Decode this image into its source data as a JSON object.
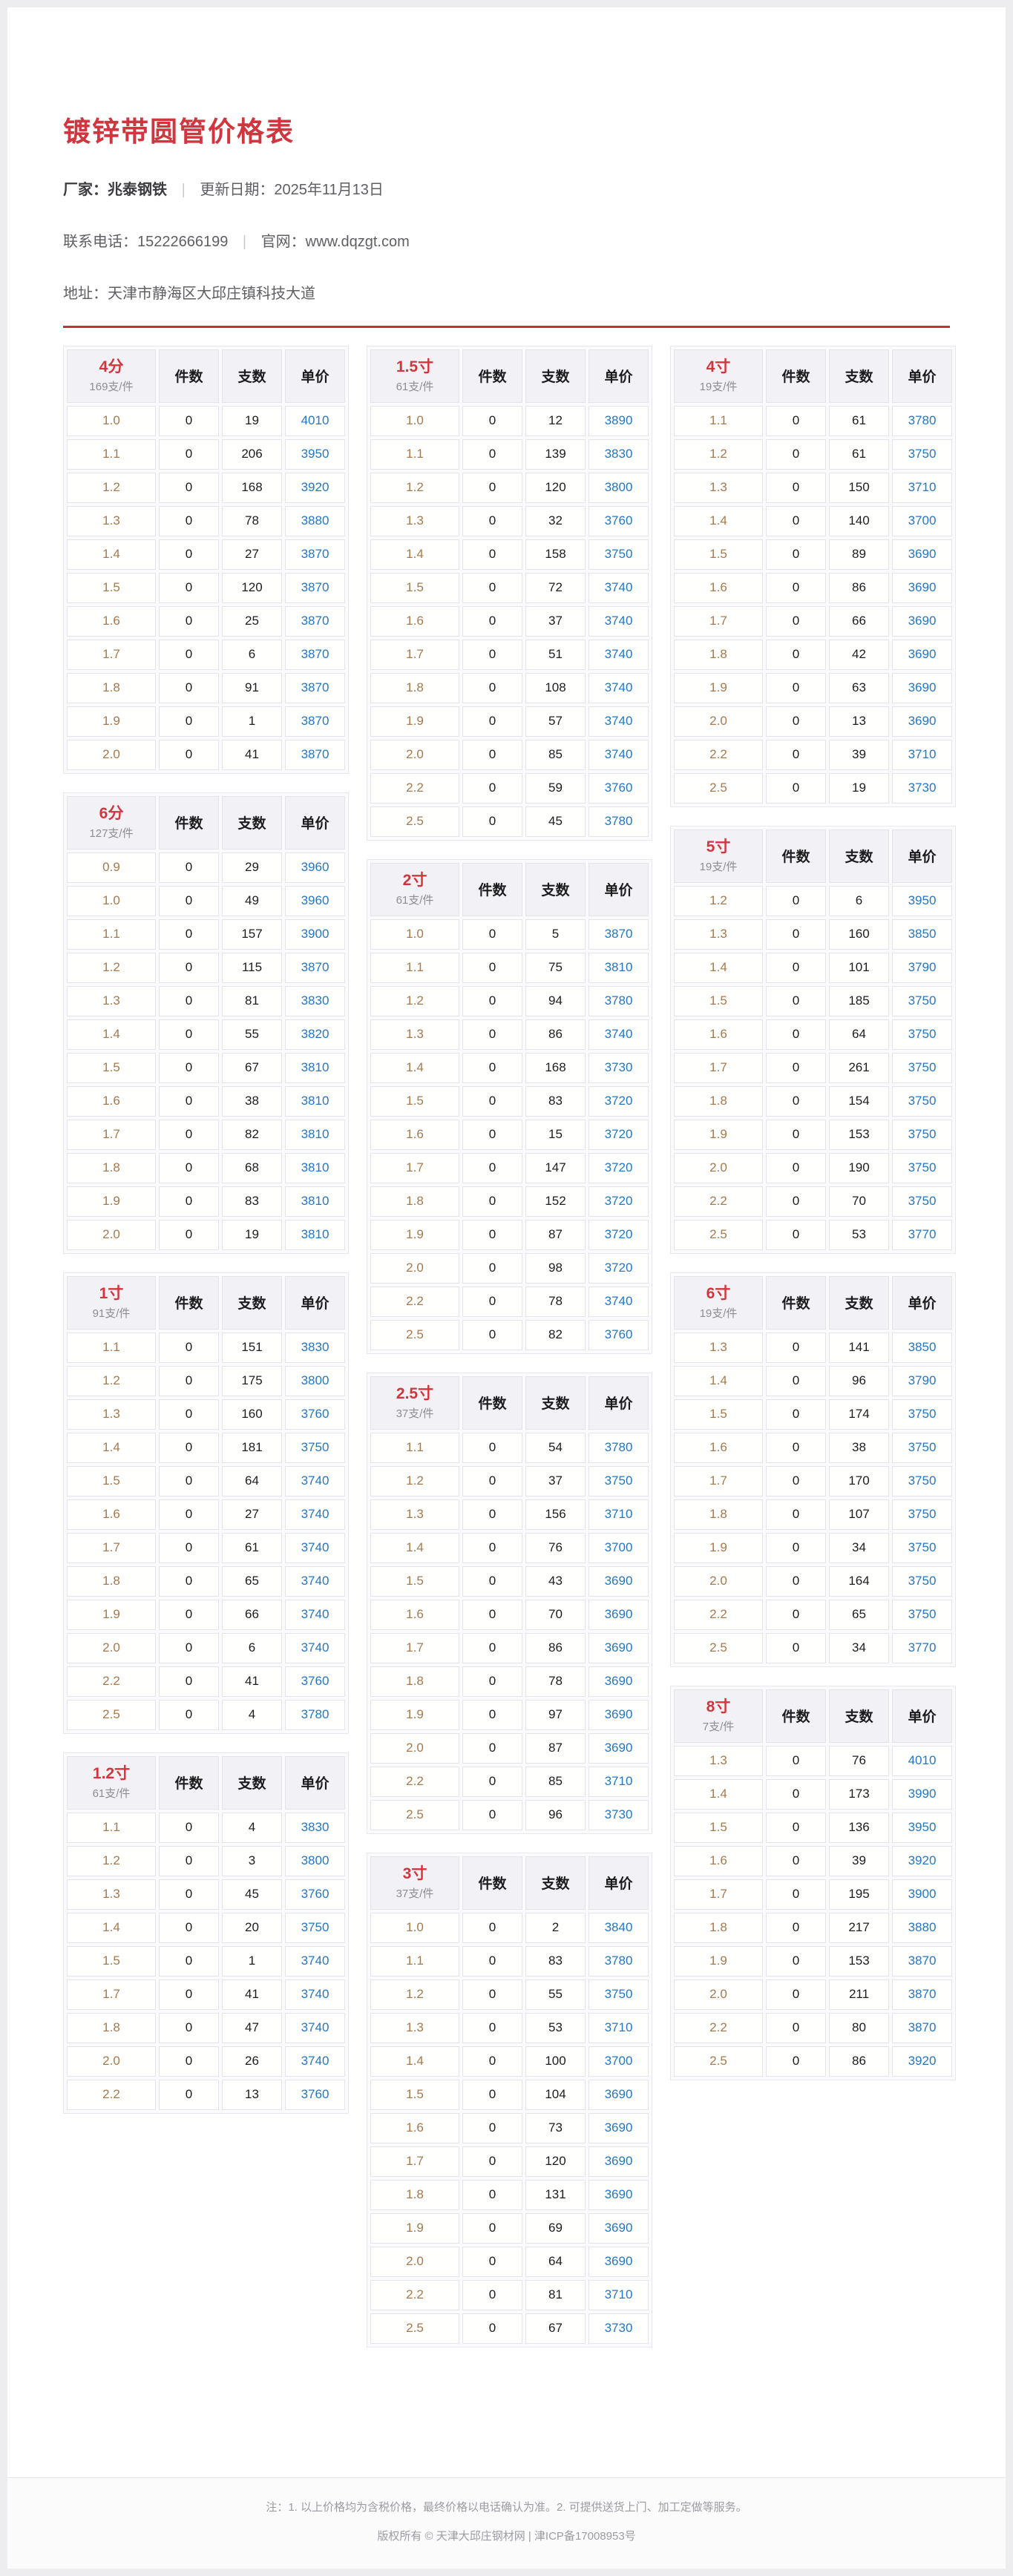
{
  "header": {
    "title": "镀锌带圆管价格表",
    "vendor": "厂家：兆泰钢铁",
    "updated": "更新日期：2025年11月13日",
    "phone": "联系电话：15222666199",
    "website": "官网：www.dqzgt.com",
    "address": "地址：天津市静海区大邱庄镇科技大道",
    "divider": "|"
  },
  "colors": {
    "accent_red": "#d2353e",
    "rule_red": "#c5303c",
    "price_blue": "#2377c8",
    "spec_brown": "#a6794f"
  },
  "table_headers": [
    "件数",
    "支数",
    "单价"
  ],
  "table_groups": [
    [
      {
        "size": "4分",
        "per": "169支/件",
        "rows": [
          [
            "1.0",
            "0",
            "19",
            "4010"
          ],
          [
            "1.1",
            "0",
            "206",
            "3950"
          ],
          [
            "1.2",
            "0",
            "168",
            "3920"
          ],
          [
            "1.3",
            "0",
            "78",
            "3880"
          ],
          [
            "1.4",
            "0",
            "27",
            "3870"
          ],
          [
            "1.5",
            "0",
            "120",
            "3870"
          ],
          [
            "1.6",
            "0",
            "25",
            "3870"
          ],
          [
            "1.7",
            "0",
            "6",
            "3870"
          ],
          [
            "1.8",
            "0",
            "91",
            "3870"
          ],
          [
            "1.9",
            "0",
            "1",
            "3870"
          ],
          [
            "2.0",
            "0",
            "41",
            "3870"
          ]
        ]
      },
      {
        "size": "6分",
        "per": "127支/件",
        "rows": [
          [
            "0.9",
            "0",
            "29",
            "3960"
          ],
          [
            "1.0",
            "0",
            "49",
            "3960"
          ],
          [
            "1.1",
            "0",
            "157",
            "3900"
          ],
          [
            "1.2",
            "0",
            "115",
            "3870"
          ],
          [
            "1.3",
            "0",
            "81",
            "3830"
          ],
          [
            "1.4",
            "0",
            "55",
            "3820"
          ],
          [
            "1.5",
            "0",
            "67",
            "3810"
          ],
          [
            "1.6",
            "0",
            "38",
            "3810"
          ],
          [
            "1.7",
            "0",
            "82",
            "3810"
          ],
          [
            "1.8",
            "0",
            "68",
            "3810"
          ],
          [
            "1.9",
            "0",
            "83",
            "3810"
          ],
          [
            "2.0",
            "0",
            "19",
            "3810"
          ]
        ]
      },
      {
        "size": "1寸",
        "per": "91支/件",
        "rows": [
          [
            "1.1",
            "0",
            "151",
            "3830"
          ],
          [
            "1.2",
            "0",
            "175",
            "3800"
          ],
          [
            "1.3",
            "0",
            "160",
            "3760"
          ],
          [
            "1.4",
            "0",
            "181",
            "3750"
          ],
          [
            "1.5",
            "0",
            "64",
            "3740"
          ],
          [
            "1.6",
            "0",
            "27",
            "3740"
          ],
          [
            "1.7",
            "0",
            "61",
            "3740"
          ],
          [
            "1.8",
            "0",
            "65",
            "3740"
          ],
          [
            "1.9",
            "0",
            "66",
            "3740"
          ],
          [
            "2.0",
            "0",
            "6",
            "3740"
          ],
          [
            "2.2",
            "0",
            "41",
            "3760"
          ],
          [
            "2.5",
            "0",
            "4",
            "3780"
          ]
        ]
      },
      {
        "size": "1.2寸",
        "per": "61支/件",
        "rows": [
          [
            "1.1",
            "0",
            "4",
            "3830"
          ],
          [
            "1.2",
            "0",
            "3",
            "3800"
          ],
          [
            "1.3",
            "0",
            "45",
            "3760"
          ],
          [
            "1.4",
            "0",
            "20",
            "3750"
          ],
          [
            "1.5",
            "0",
            "1",
            "3740"
          ],
          [
            "1.7",
            "0",
            "41",
            "3740"
          ],
          [
            "1.8",
            "0",
            "47",
            "3740"
          ],
          [
            "2.0",
            "0",
            "26",
            "3740"
          ],
          [
            "2.2",
            "0",
            "13",
            "3760"
          ]
        ]
      }
    ],
    [
      {
        "size": "1.5寸",
        "per": "61支/件",
        "rows": [
          [
            "1.0",
            "0",
            "12",
            "3890"
          ],
          [
            "1.1",
            "0",
            "139",
            "3830"
          ],
          [
            "1.2",
            "0",
            "120",
            "3800"
          ],
          [
            "1.3",
            "0",
            "32",
            "3760"
          ],
          [
            "1.4",
            "0",
            "158",
            "3750"
          ],
          [
            "1.5",
            "0",
            "72",
            "3740"
          ],
          [
            "1.6",
            "0",
            "37",
            "3740"
          ],
          [
            "1.7",
            "0",
            "51",
            "3740"
          ],
          [
            "1.8",
            "0",
            "108",
            "3740"
          ],
          [
            "1.9",
            "0",
            "57",
            "3740"
          ],
          [
            "2.0",
            "0",
            "85",
            "3740"
          ],
          [
            "2.2",
            "0",
            "59",
            "3760"
          ],
          [
            "2.5",
            "0",
            "45",
            "3780"
          ]
        ]
      },
      {
        "size": "2寸",
        "per": "61支/件",
        "rows": [
          [
            "1.0",
            "0",
            "5",
            "3870"
          ],
          [
            "1.1",
            "0",
            "75",
            "3810"
          ],
          [
            "1.2",
            "0",
            "94",
            "3780"
          ],
          [
            "1.3",
            "0",
            "86",
            "3740"
          ],
          [
            "1.4",
            "0",
            "168",
            "3730"
          ],
          [
            "1.5",
            "0",
            "83",
            "3720"
          ],
          [
            "1.6",
            "0",
            "15",
            "3720"
          ],
          [
            "1.7",
            "0",
            "147",
            "3720"
          ],
          [
            "1.8",
            "0",
            "152",
            "3720"
          ],
          [
            "1.9",
            "0",
            "87",
            "3720"
          ],
          [
            "2.0",
            "0",
            "98",
            "3720"
          ],
          [
            "2.2",
            "0",
            "78",
            "3740"
          ],
          [
            "2.5",
            "0",
            "82",
            "3760"
          ]
        ]
      },
      {
        "size": "2.5寸",
        "per": "37支/件",
        "rows": [
          [
            "1.1",
            "0",
            "54",
            "3780"
          ],
          [
            "1.2",
            "0",
            "37",
            "3750"
          ],
          [
            "1.3",
            "0",
            "156",
            "3710"
          ],
          [
            "1.4",
            "0",
            "76",
            "3700"
          ],
          [
            "1.5",
            "0",
            "43",
            "3690"
          ],
          [
            "1.6",
            "0",
            "70",
            "3690"
          ],
          [
            "1.7",
            "0",
            "86",
            "3690"
          ],
          [
            "1.8",
            "0",
            "78",
            "3690"
          ],
          [
            "1.9",
            "0",
            "97",
            "3690"
          ],
          [
            "2.0",
            "0",
            "87",
            "3690"
          ],
          [
            "2.2",
            "0",
            "85",
            "3710"
          ],
          [
            "2.5",
            "0",
            "96",
            "3730"
          ]
        ]
      },
      {
        "size": "3寸",
        "per": "37支/件",
        "rows": [
          [
            "1.0",
            "0",
            "2",
            "3840"
          ],
          [
            "1.1",
            "0",
            "83",
            "3780"
          ],
          [
            "1.2",
            "0",
            "55",
            "3750"
          ],
          [
            "1.3",
            "0",
            "53",
            "3710"
          ],
          [
            "1.4",
            "0",
            "100",
            "3700"
          ],
          [
            "1.5",
            "0",
            "104",
            "3690"
          ],
          [
            "1.6",
            "0",
            "73",
            "3690"
          ],
          [
            "1.7",
            "0",
            "120",
            "3690"
          ],
          [
            "1.8",
            "0",
            "131",
            "3690"
          ],
          [
            "1.9",
            "0",
            "69",
            "3690"
          ],
          [
            "2.0",
            "0",
            "64",
            "3690"
          ],
          [
            "2.2",
            "0",
            "81",
            "3710"
          ],
          [
            "2.5",
            "0",
            "67",
            "3730"
          ]
        ]
      }
    ],
    [
      {
        "size": "4寸",
        "per": "19支/件",
        "rows": [
          [
            "1.1",
            "0",
            "61",
            "3780"
          ],
          [
            "1.2",
            "0",
            "61",
            "3750"
          ],
          [
            "1.3",
            "0",
            "150",
            "3710"
          ],
          [
            "1.4",
            "0",
            "140",
            "3700"
          ],
          [
            "1.5",
            "0",
            "89",
            "3690"
          ],
          [
            "1.6",
            "0",
            "86",
            "3690"
          ],
          [
            "1.7",
            "0",
            "66",
            "3690"
          ],
          [
            "1.8",
            "0",
            "42",
            "3690"
          ],
          [
            "1.9",
            "0",
            "63",
            "3690"
          ],
          [
            "2.0",
            "0",
            "13",
            "3690"
          ],
          [
            "2.2",
            "0",
            "39",
            "3710"
          ],
          [
            "2.5",
            "0",
            "19",
            "3730"
          ]
        ]
      },
      {
        "size": "5寸",
        "per": "19支/件",
        "rows": [
          [
            "1.2",
            "0",
            "6",
            "3950"
          ],
          [
            "1.3",
            "0",
            "160",
            "3850"
          ],
          [
            "1.4",
            "0",
            "101",
            "3790"
          ],
          [
            "1.5",
            "0",
            "185",
            "3750"
          ],
          [
            "1.6",
            "0",
            "64",
            "3750"
          ],
          [
            "1.7",
            "0",
            "261",
            "3750"
          ],
          [
            "1.8",
            "0",
            "154",
            "3750"
          ],
          [
            "1.9",
            "0",
            "153",
            "3750"
          ],
          [
            "2.0",
            "0",
            "190",
            "3750"
          ],
          [
            "2.2",
            "0",
            "70",
            "3750"
          ],
          [
            "2.5",
            "0",
            "53",
            "3770"
          ]
        ]
      },
      {
        "size": "6寸",
        "per": "19支/件",
        "rows": [
          [
            "1.3",
            "0",
            "141",
            "3850"
          ],
          [
            "1.4",
            "0",
            "96",
            "3790"
          ],
          [
            "1.5",
            "0",
            "174",
            "3750"
          ],
          [
            "1.6",
            "0",
            "38",
            "3750"
          ],
          [
            "1.7",
            "0",
            "170",
            "3750"
          ],
          [
            "1.8",
            "0",
            "107",
            "3750"
          ],
          [
            "1.9",
            "0",
            "34",
            "3750"
          ],
          [
            "2.0",
            "0",
            "164",
            "3750"
          ],
          [
            "2.2",
            "0",
            "65",
            "3750"
          ],
          [
            "2.5",
            "0",
            "34",
            "3770"
          ]
        ]
      },
      {
        "size": "8寸",
        "per": "7支/件",
        "rows": [
          [
            "1.3",
            "0",
            "76",
            "4010"
          ],
          [
            "1.4",
            "0",
            "173",
            "3990"
          ],
          [
            "1.5",
            "0",
            "136",
            "3950"
          ],
          [
            "1.6",
            "0",
            "39",
            "3920"
          ],
          [
            "1.7",
            "0",
            "195",
            "3900"
          ],
          [
            "1.8",
            "0",
            "217",
            "3880"
          ],
          [
            "1.9",
            "0",
            "153",
            "3870"
          ],
          [
            "2.0",
            "0",
            "211",
            "3870"
          ],
          [
            "2.2",
            "0",
            "80",
            "3870"
          ],
          [
            "2.5",
            "0",
            "86",
            "3920"
          ]
        ]
      }
    ]
  ],
  "footer": {
    "note": "注：1. 以上价格均为含税价格，最终价格以电话确认为准。2. 可提供送货上门、加工定做等服务。",
    "copyright": "版权所有 © 天津大邱庄钢材网 | 津ICP备17008953号"
  }
}
